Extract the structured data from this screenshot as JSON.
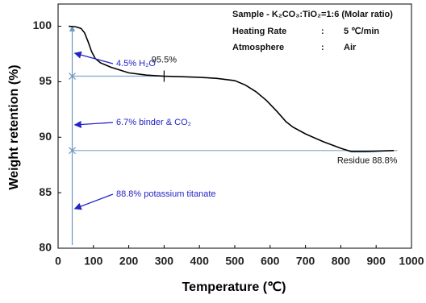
{
  "chart_data": {
    "type": "line",
    "x_label": "Temperature (℃)",
    "y_label": "Weight retention (%)",
    "xlim": [
      0,
      1000
    ],
    "xticks": [
      0,
      100,
      200,
      300,
      400,
      500,
      600,
      700,
      800,
      900,
      1000
    ],
    "ylim": [
      80,
      102
    ],
    "yticks": [
      80,
      85,
      90,
      95,
      100
    ],
    "series": [
      {
        "color": "#000000",
        "x": [
          30,
          50,
          65,
          75,
          85,
          95,
          105,
          120,
          150,
          200,
          250,
          300,
          350,
          400,
          450,
          500,
          530,
          560,
          590,
          620,
          645,
          665,
          700,
          750,
          800,
          830,
          870,
          910,
          950
        ],
        "values": [
          100,
          99.95,
          99.8,
          99.4,
          98.6,
          97.7,
          97.1,
          96.7,
          96.3,
          95.8,
          95.6,
          95.5,
          95.45,
          95.4,
          95.3,
          95.1,
          94.7,
          94.1,
          93.3,
          92.3,
          91.4,
          90.9,
          90.3,
          89.6,
          89.0,
          88.7,
          88.7,
          88.75,
          88.8
        ]
      }
    ],
    "levels": [
      {
        "value": 95.5,
        "label": "95.5%"
      },
      {
        "value": 88.8,
        "label": "Residue 88.8%"
      }
    ],
    "notes": [
      "4.5% H₂O",
      "6.7% binder & CO₂",
      "88.8% potassium titanate"
    ],
    "info": {
      "sample": "Sample - K₂CO₃:TiO₂=1:6  (Molar ratio)",
      "rows": [
        [
          "Heating Rate",
          ":",
          "5 ℃/min"
        ],
        [
          "Atmosphere",
          ":",
          "Air"
        ]
      ]
    }
  }
}
